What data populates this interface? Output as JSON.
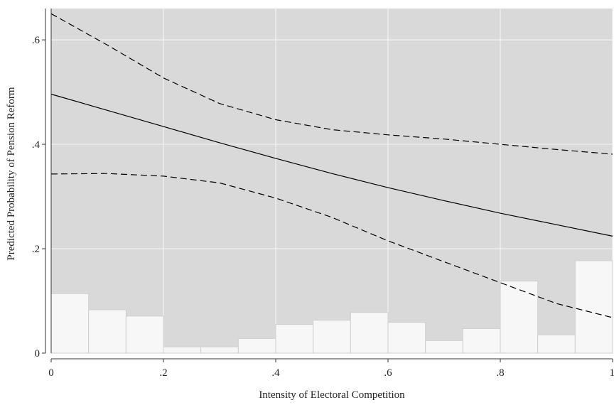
{
  "chart_data": {
    "type": "line",
    "title": "",
    "xlabel": "Intensity of Electoral Competition",
    "ylabel": "Predicted Probability of Pension Reform",
    "xlim": [
      0,
      1
    ],
    "ylim": [
      0,
      0.66
    ],
    "grid": true,
    "legend": "none",
    "x_ticks": [
      {
        "value": 0,
        "label": "0"
      },
      {
        "value": 0.2,
        "label": ".2"
      },
      {
        "value": 0.4,
        "label": ".4"
      },
      {
        "value": 0.6,
        "label": ".6"
      },
      {
        "value": 0.8,
        "label": ".8"
      },
      {
        "value": 1,
        "label": "1"
      }
    ],
    "y_ticks": [
      {
        "value": 0,
        "label": "0"
      },
      {
        "value": 0.2,
        "label": ".2"
      },
      {
        "value": 0.4,
        "label": ".4"
      },
      {
        "value": 0.6,
        "label": ".6"
      }
    ],
    "series": [
      {
        "style": "solid",
        "x": [
          0,
          0.1,
          0.2,
          0.3,
          0.4,
          0.5,
          0.6,
          0.7,
          0.8,
          0.9,
          1.0
        ],
        "values": [
          0.496,
          0.465,
          0.434,
          0.403,
          0.373,
          0.344,
          0.317,
          0.292,
          0.268,
          0.246,
          0.224
        ]
      },
      {
        "style": "dashed",
        "x": [
          0,
          0.1,
          0.2,
          0.3,
          0.4,
          0.5,
          0.6,
          0.7,
          0.8,
          0.9,
          1.0
        ],
        "values": [
          0.65,
          0.59,
          0.527,
          0.478,
          0.447,
          0.428,
          0.418,
          0.41,
          0.4,
          0.39,
          0.381
        ]
      },
      {
        "style": "dashed",
        "x": [
          0,
          0.1,
          0.2,
          0.3,
          0.4,
          0.5,
          0.6,
          0.7,
          0.8,
          0.9,
          1.0
        ],
        "values": [
          0.343,
          0.344,
          0.339,
          0.326,
          0.297,
          0.26,
          0.215,
          0.175,
          0.135,
          0.095,
          0.068
        ]
      }
    ],
    "histogram": {
      "bin_width": 0.0667,
      "bins": [
        {
          "x0": 0.0,
          "height": 0.114
        },
        {
          "x0": 0.0667,
          "height": 0.083
        },
        {
          "x0": 0.1333,
          "height": 0.071
        },
        {
          "x0": 0.2,
          "height": 0.012
        },
        {
          "x0": 0.2667,
          "height": 0.012
        },
        {
          "x0": 0.3333,
          "height": 0.028
        },
        {
          "x0": 0.4,
          "height": 0.055
        },
        {
          "x0": 0.4667,
          "height": 0.063
        },
        {
          "x0": 0.5333,
          "height": 0.078
        },
        {
          "x0": 0.6,
          "height": 0.059
        },
        {
          "x0": 0.6667,
          "height": 0.024
        },
        {
          "x0": 0.7333,
          "height": 0.047
        },
        {
          "x0": 0.8,
          "height": 0.138
        },
        {
          "x0": 0.8667,
          "height": 0.035
        },
        {
          "x0": 0.9333,
          "height": 0.177
        }
      ]
    },
    "colors": {
      "plot_bg": "#d9d9d9",
      "grid": "#f2f2f2",
      "bar_fill": "#f7f7f7",
      "bar_stroke": "#cfcfcf",
      "line": "#000000",
      "axis": "#333333"
    }
  }
}
